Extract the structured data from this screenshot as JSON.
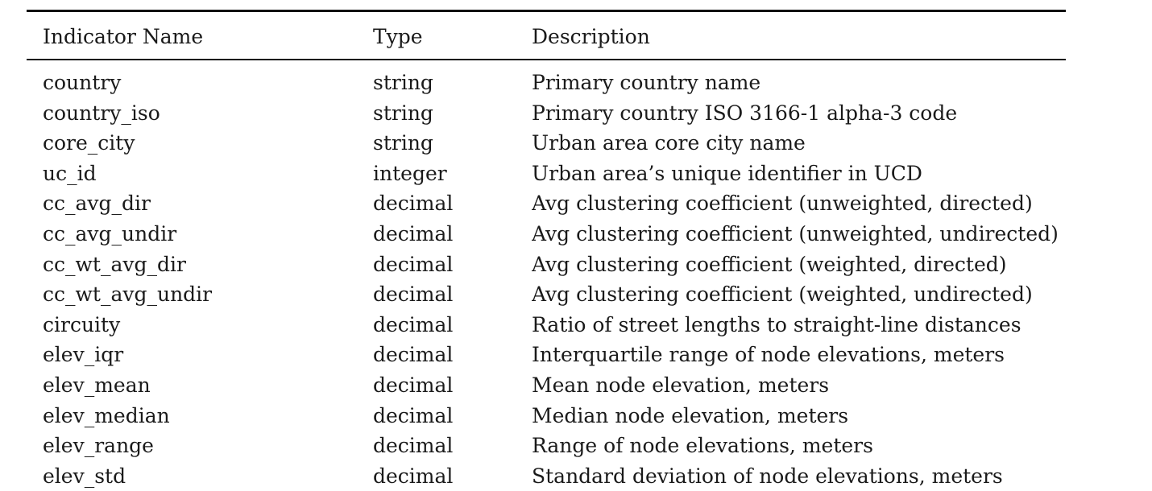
{
  "table": {
    "headers": [
      "Indicator Name",
      "Type",
      "Description"
    ],
    "rows": [
      [
        "country",
        "string",
        "Primary country name"
      ],
      [
        "country_iso",
        "string",
        "Primary country ISO 3166-1 alpha-3 code"
      ],
      [
        "core_city",
        "string",
        "Urban area core city name"
      ],
      [
        "uc_id",
        "integer",
        "Urban area’s unique identifier in UCD"
      ],
      [
        "cc_avg_dir",
        "decimal",
        "Avg clustering coefficient (unweighted, directed)"
      ],
      [
        "cc_avg_undir",
        "decimal",
        "Avg clustering coefficient (unweighted, undirected)"
      ],
      [
        "cc_wt_avg_dir",
        "decimal",
        "Avg clustering coefficient (weighted, directed)"
      ],
      [
        "cc_wt_avg_undir",
        "decimal",
        "Avg clustering coefficient (weighted, undirected)"
      ],
      [
        "circuity",
        "decimal",
        "Ratio of street lengths to straight-line distances"
      ],
      [
        "elev_iqr",
        "decimal",
        "Interquartile range of node elevations, meters"
      ],
      [
        "elev_mean",
        "decimal",
        "Mean node elevation, meters"
      ],
      [
        "elev_median",
        "decimal",
        "Median node elevation, meters"
      ],
      [
        "elev_range",
        "decimal",
        "Range of node elevations, meters"
      ],
      [
        "elev_std",
        "decimal",
        "Standard deviation of node elevations, meters"
      ]
    ]
  }
}
